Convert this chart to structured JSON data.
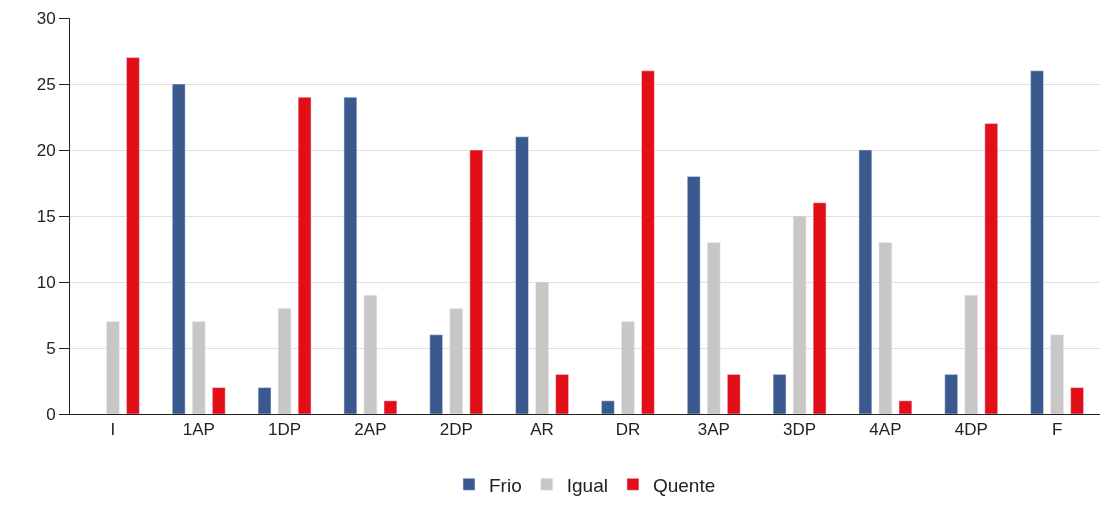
{
  "chart_data": {
    "type": "bar",
    "categories": [
      "I",
      "1AP",
      "1DP",
      "2AP",
      "2DP",
      "AR",
      "DR",
      "3AP",
      "3DP",
      "4AP",
      "4DP",
      "F"
    ],
    "series": [
      {
        "name": "Frio",
        "color": "#3a5a8f",
        "values": [
          null,
          25,
          2,
          24,
          6,
          21,
          1,
          18,
          3,
          20,
          3,
          26
        ]
      },
      {
        "name": "Igual",
        "color": "#c8c7c6",
        "values": [
          7,
          7,
          8,
          9,
          8,
          10,
          7,
          13,
          15,
          13,
          9,
          6
        ]
      },
      {
        "name": "Quente",
        "color": "#e30f18",
        "values": [
          27,
          2,
          24,
          1,
          20,
          3,
          26,
          3,
          16,
          1,
          22,
          2
        ]
      }
    ],
    "ylim": [
      0,
      30
    ],
    "yticks": [
      0,
      5,
      10,
      15,
      20,
      25,
      30
    ],
    "grid": "y",
    "legend": "bottom"
  }
}
